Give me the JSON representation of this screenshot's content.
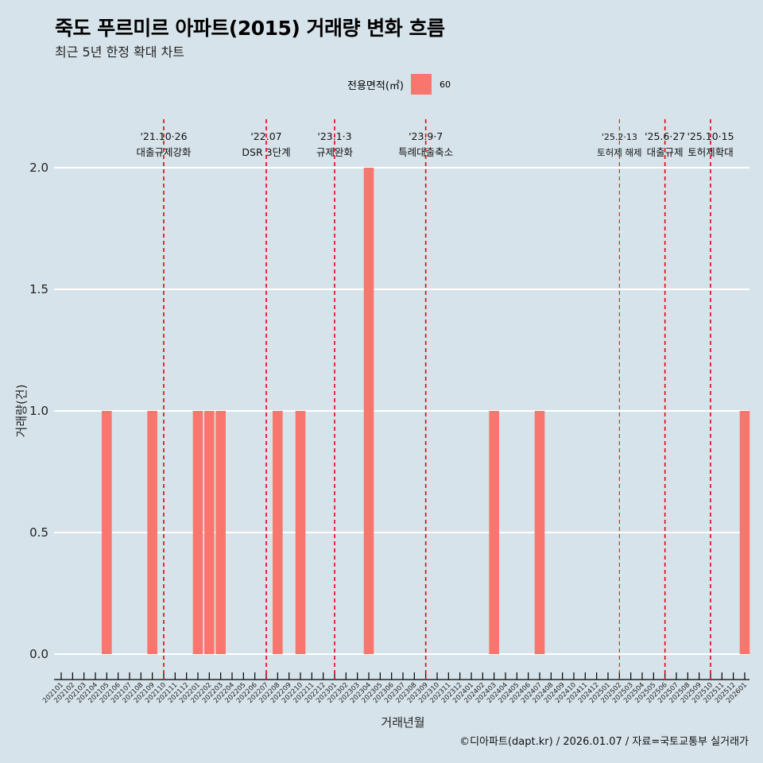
{
  "header": {
    "title": "죽도 푸르미르 아파트(2015) 거래량 변화 흐름",
    "subtitle": "최근 5년 한정 확대 차트"
  },
  "legend": {
    "title": "전용면적(㎡)",
    "items": [
      {
        "label": "60",
        "color": "#f8766d"
      }
    ]
  },
  "caption": "©디아파트(dapt.kr) / 2026.01.07 / 자료=국토교통부 실거래가",
  "chart_data": {
    "type": "bar",
    "title": "죽도 푸르미르 아파트(2015) 거래량 변화 흐름",
    "xlabel": "거래년월",
    "ylabel": "거래량(건)",
    "ylim": [
      0,
      2
    ],
    "yticks": [
      "0.0",
      "0.5",
      "1.0",
      "1.5",
      "2.0"
    ],
    "ytick_values": [
      0,
      0.5,
      1,
      1.5,
      2
    ],
    "grid": true,
    "legend_position": "top",
    "bar_color": "#f8766d",
    "categories": [
      "202101",
      "202102",
      "202103",
      "202104",
      "202105",
      "202106",
      "202107",
      "202108",
      "202109",
      "202110",
      "202111",
      "202112",
      "202201",
      "202202",
      "202203",
      "202204",
      "202205",
      "202206",
      "202207",
      "202208",
      "202209",
      "202210",
      "202211",
      "202212",
      "202301",
      "202302",
      "202303",
      "202304",
      "202305",
      "202306",
      "202307",
      "202308",
      "202309",
      "202310",
      "202311",
      "202312",
      "202401",
      "202402",
      "202403",
      "202404",
      "202405",
      "202406",
      "202407",
      "202408",
      "202409",
      "202410",
      "202411",
      "202412",
      "202501",
      "202502",
      "202503",
      "202504",
      "202505",
      "202506",
      "202507",
      "202508",
      "202509",
      "202510",
      "202511",
      "202512",
      "202601"
    ],
    "series": [
      {
        "name": "60",
        "values": {
          "202105": 1,
          "202109": 1,
          "202201": 1,
          "202202": 1,
          "202203": 1,
          "202208": 1,
          "202210": 1,
          "202304": 2,
          "202403": 1,
          "202407": 1,
          "202601": 1
        }
      }
    ],
    "annotations": [
      {
        "x": "202110",
        "date": "'21.10·26",
        "label": "대출규제강화",
        "minor": false
      },
      {
        "x": "202207",
        "date": "'22.07",
        "label": "DSR 3단계",
        "minor": false
      },
      {
        "x": "202301",
        "date": "'23.1·3",
        "label": "규제완화",
        "minor": false
      },
      {
        "x": "202309",
        "date": "'23.9·7",
        "label": "특례대출축소",
        "minor": false
      },
      {
        "x": "202502",
        "date": "'25.2·13",
        "label": "토허제 해제",
        "minor": true
      },
      {
        "x": "202506",
        "date": "'25.6·27",
        "label": "대출규제",
        "minor": false
      },
      {
        "x": "202510",
        "date": "'25.10·15",
        "label": "토허제확대",
        "minor": false
      }
    ]
  }
}
